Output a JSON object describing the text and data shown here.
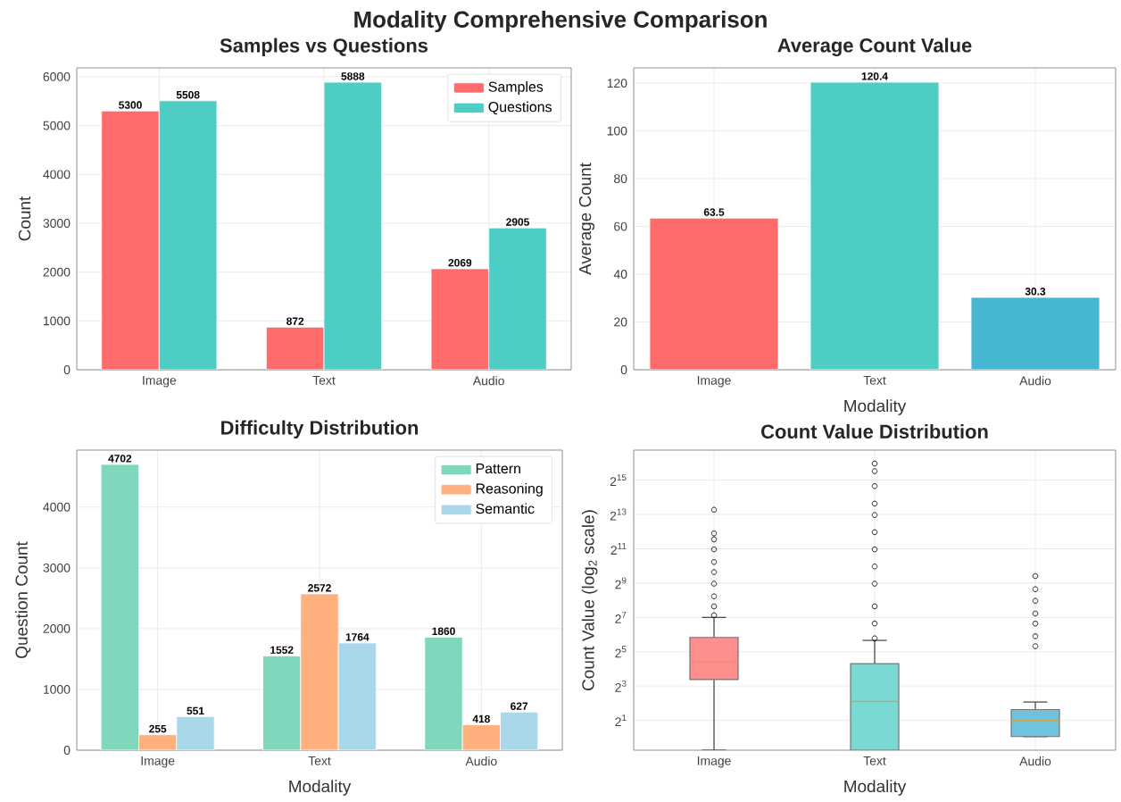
{
  "chart_data": [
    {
      "type": "other",
      "title": "Modality Comprehensive Comparison"
    },
    {
      "type": "bar",
      "title": "Samples vs Questions",
      "ylabel": "Count",
      "categories": [
        "Image",
        "Text",
        "Audio"
      ],
      "series": [
        {
          "name": "Samples",
          "color": "#ff6b6b",
          "values": [
            5300,
            872,
            2069
          ]
        },
        {
          "name": "Questions",
          "color": "#4ecdc4",
          "values": [
            5508,
            5888,
            2905
          ]
        }
      ],
      "ylim": [
        0,
        6182
      ],
      "yticks": [
        0,
        1000,
        2000,
        3000,
        4000,
        5000,
        6000
      ],
      "data_labels": true,
      "legend": "top right",
      "grid": true
    },
    {
      "type": "bar",
      "title": "Average Count Value",
      "xlabel": "Modality",
      "ylabel": "Average Count",
      "categories": [
        "Image",
        "Text",
        "Audio"
      ],
      "values": [
        63.5,
        120.4,
        30.3
      ],
      "colors": [
        "#ff6b6b",
        "#4ecdc4",
        "#45b7d1"
      ],
      "ylim": [
        0,
        126.4
      ],
      "yticks": [
        0,
        20,
        40,
        60,
        80,
        100,
        120
      ],
      "data_labels": true,
      "grid": true
    },
    {
      "type": "bar",
      "title": "Difficulty Distribution",
      "xlabel": "Modality",
      "ylabel": "Question Count",
      "categories": [
        "Image",
        "Text",
        "Audio"
      ],
      "series": [
        {
          "name": "Pattern",
          "color": "#7fd8be",
          "values": [
            4702,
            1552,
            1860
          ]
        },
        {
          "name": "Reasoning",
          "color": "#ffb07c",
          "values": [
            255,
            2572,
            418
          ]
        },
        {
          "name": "Semantic",
          "color": "#a8d8ea",
          "values": [
            551,
            1764,
            627
          ]
        }
      ],
      "ylim": [
        0,
        4937
      ],
      "yticks": [
        0,
        1000,
        2000,
        3000,
        4000
      ],
      "data_labels": true,
      "legend": "top right",
      "grid": true
    },
    {
      "type": "box",
      "title": "Count Value Distribution",
      "xlabel": "Modality",
      "ylabel": "Count Value (log$_{2}$ scale)",
      "categories": [
        "Image",
        "Text",
        "Audio"
      ],
      "colors": [
        "#ff8e8e",
        "#7ad9d2",
        "#6fc3dc"
      ],
      "boxes": [
        {
          "low": 0.6,
          "q1": 10.4,
          "median": 21,
          "q3": 57,
          "high": 128,
          "outliers": [
            140,
            200,
            300,
            500,
            800,
            1200,
            2000,
            3000,
            3800,
            9900
          ]
        },
        {
          "low": 0.6,
          "q1": 0.6,
          "median": 4.3,
          "q3": 19.7,
          "high": 50.6,
          "outliers": [
            55,
            100,
            200,
            500,
            1000,
            2000,
            4000,
            8000,
            12700,
            25700,
            47000,
            64000
          ]
        },
        {
          "low": 1.04,
          "q1": 1.04,
          "median": 2.0,
          "q3": 3.1,
          "high": 4.2,
          "outliers": [
            40,
            60,
            100,
            150,
            250,
            400,
            680
          ]
        }
      ],
      "log": "y",
      "ylim": [
        0.6,
        110000
      ],
      "yticks": [
        {
          "value": 2,
          "label": "2$^{1}$"
        },
        {
          "value": 8,
          "label": "2$^{3}$"
        },
        {
          "value": 32,
          "label": "2$^{5}$"
        },
        {
          "value": 128,
          "label": "2$^{7}$"
        },
        {
          "value": 512,
          "label": "2$^{9}$"
        },
        {
          "value": 2048,
          "label": "2$^{11}$"
        },
        {
          "value": 8192,
          "label": "2$^{13}$"
        },
        {
          "value": 32768,
          "label": "2$^{15}$"
        }
      ],
      "grid": true
    }
  ]
}
